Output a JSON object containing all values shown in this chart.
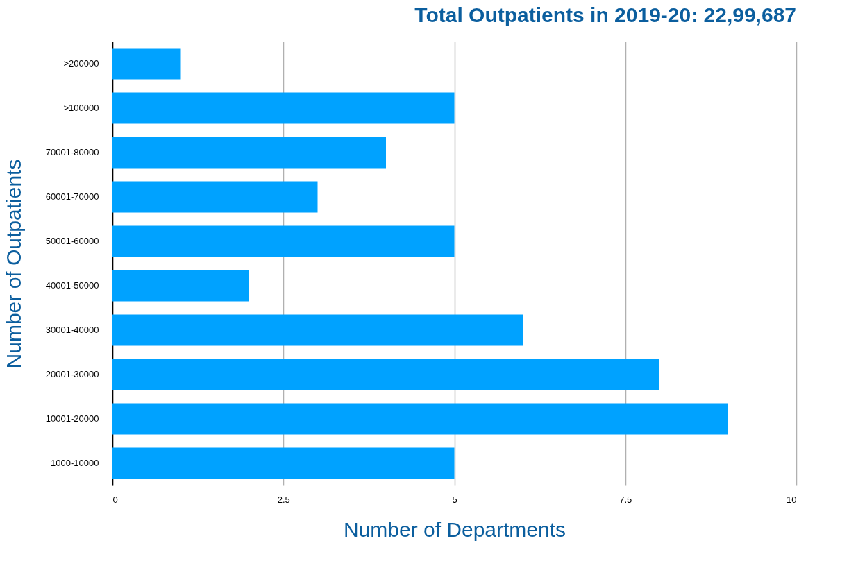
{
  "chart_data": {
    "type": "bar",
    "orientation": "horizontal",
    "title": "Total Outpatients in 2019-20: 22,99,687",
    "xlabel": "Number of Departments",
    "ylabel": "Number of Outpatients",
    "categories": [
      ">200000",
      ">100000",
      "70001-80000",
      "60001-70000",
      "50001-60000",
      "40001-50000",
      "30001-40000",
      "20001-30000",
      "10001-20000",
      "1000-10000"
    ],
    "values": [
      1,
      5,
      4,
      3,
      5,
      2,
      6,
      8,
      9,
      5
    ],
    "color": "#00a2ff",
    "xlim": [
      0,
      10
    ],
    "xticks": [
      0,
      2.5,
      5,
      7.5,
      10
    ],
    "grid": "x"
  }
}
